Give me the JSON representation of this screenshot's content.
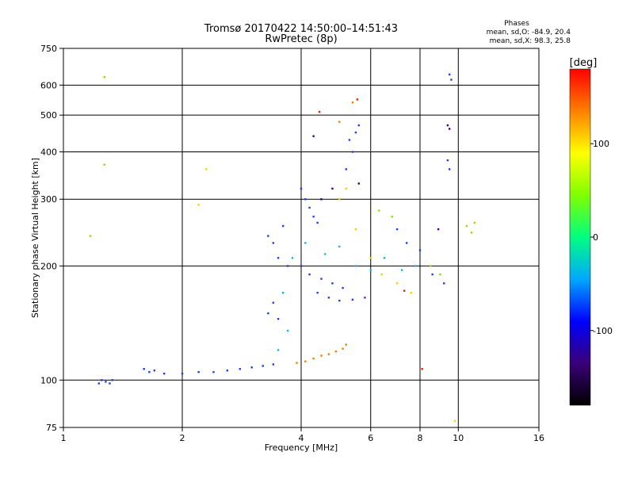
{
  "title": {
    "line1": "Tromsø 20170422 14:50:00–14:51:43",
    "line2": "RwPretec (8p)"
  },
  "stats": {
    "heading": "Phases",
    "line_o": "mean, sd,O: -84.9, 20.4",
    "line_x": "mean, sd,X:  98.3, 25.8"
  },
  "colorbar": {
    "unit": "[deg]",
    "ticks": [
      {
        "value": 100,
        "label": "100"
      },
      {
        "value": 0,
        "label": "0"
      },
      {
        "value": -100,
        "label": "-100"
      }
    ],
    "range": [
      -180,
      180
    ],
    "stops": [
      "#000000",
      "#3a0078",
      "#0000ff",
      "#00a8ff",
      "#00ff80",
      "#80ff00",
      "#ffff00",
      "#ff8000",
      "#ff0000"
    ]
  },
  "chart_data": {
    "type": "scatter",
    "xlabel": "Frequency [MHz]",
    "ylabel": "Stationary phase Virtual Height [km]",
    "xscale": "log",
    "yscale": "log",
    "xlim": [
      1,
      16
    ],
    "ylim": [
      75,
      750
    ],
    "xticks": [
      1,
      2,
      4,
      6,
      8,
      10,
      16
    ],
    "yticks": [
      75,
      100,
      200,
      300,
      400,
      500,
      600,
      750
    ],
    "grid": true,
    "color_variable": "phase [deg]",
    "series": [
      {
        "color": "#1f3fe0",
        "points": [
          [
            1.23,
            98
          ],
          [
            1.25,
            100
          ],
          [
            1.28,
            99
          ],
          [
            1.31,
            98
          ],
          [
            1.33,
            100
          ],
          [
            1.6,
            107
          ],
          [
            1.65,
            105
          ],
          [
            1.7,
            106
          ],
          [
            1.8,
            104
          ],
          [
            2.0,
            104
          ],
          [
            2.2,
            105
          ],
          [
            2.4,
            105
          ],
          [
            2.6,
            106
          ],
          [
            2.8,
            107
          ],
          [
            3.0,
            108
          ],
          [
            3.2,
            109
          ],
          [
            3.4,
            110
          ],
          [
            3.3,
            150
          ],
          [
            3.4,
            160
          ],
          [
            3.5,
            145
          ],
          [
            3.3,
            240
          ],
          [
            3.4,
            230
          ],
          [
            3.5,
            210
          ],
          [
            3.6,
            255
          ],
          [
            3.7,
            200
          ],
          [
            4.0,
            320
          ],
          [
            4.1,
            300
          ],
          [
            4.2,
            285
          ],
          [
            4.3,
            270
          ],
          [
            4.4,
            260
          ],
          [
            4.0,
            200
          ],
          [
            4.2,
            190
          ],
          [
            4.5,
            185
          ],
          [
            4.8,
            180
          ],
          [
            5.1,
            175
          ],
          [
            4.4,
            170
          ],
          [
            4.7,
            165
          ],
          [
            5.0,
            162
          ],
          [
            5.4,
            163
          ],
          [
            5.8,
            165
          ],
          [
            5.3,
            430
          ],
          [
            5.5,
            450
          ],
          [
            5.4,
            400
          ],
          [
            5.6,
            470
          ],
          [
            5.2,
            360
          ],
          [
            7.0,
            250
          ],
          [
            7.4,
            230
          ],
          [
            8.0,
            220
          ],
          [
            8.6,
            190
          ],
          [
            9.2,
            180
          ],
          [
            9.5,
            640
          ],
          [
            9.6,
            620
          ],
          [
            9.4,
            380
          ],
          [
            9.5,
            360
          ]
        ]
      },
      {
        "color": "#1fb0e8",
        "points": [
          [
            3.5,
            120
          ],
          [
            3.7,
            135
          ],
          [
            3.6,
            170
          ],
          [
            3.8,
            210
          ],
          [
            4.1,
            230
          ],
          [
            4.6,
            215
          ],
          [
            5.0,
            225
          ],
          [
            5.5,
            200
          ],
          [
            6.0,
            195
          ],
          [
            6.5,
            210
          ],
          [
            7.2,
            195
          ],
          [
            7.8,
            200
          ]
        ]
      },
      {
        "color": "#8ce000",
        "points": [
          [
            1.17,
            240
          ],
          [
            1.27,
            630
          ],
          [
            1.27,
            370
          ],
          [
            6.3,
            280
          ],
          [
            6.8,
            270
          ],
          [
            8.5,
            200
          ],
          [
            9.0,
            190
          ],
          [
            10.5,
            255
          ],
          [
            10.8,
            245
          ],
          [
            11.0,
            260
          ]
        ]
      },
      {
        "color": "#f0d000",
        "points": [
          [
            2.2,
            290
          ],
          [
            2.3,
            360
          ],
          [
            5.0,
            300
          ],
          [
            5.2,
            320
          ],
          [
            5.5,
            250
          ],
          [
            6.0,
            210
          ],
          [
            6.4,
            190
          ],
          [
            7.0,
            180
          ],
          [
            7.6,
            170
          ],
          [
            9.8,
            78
          ]
        ]
      },
      {
        "color": "#f08000",
        "points": [
          [
            3.9,
            111
          ],
          [
            4.1,
            112
          ],
          [
            4.3,
            114
          ],
          [
            4.5,
            116
          ],
          [
            4.7,
            117
          ],
          [
            4.9,
            119
          ],
          [
            5.1,
            121
          ],
          [
            5.2,
            124
          ],
          [
            5.0,
            480
          ],
          [
            5.4,
            540
          ]
        ]
      },
      {
        "color": "#e02000",
        "points": [
          [
            4.45,
            510
          ],
          [
            5.55,
            550
          ],
          [
            8.1,
            107
          ],
          [
            7.3,
            172
          ]
        ]
      },
      {
        "color": "#3a0078",
        "points": [
          [
            4.5,
            300
          ],
          [
            4.8,
            320
          ],
          [
            5.6,
            330
          ],
          [
            8.9,
            250
          ],
          [
            9.4,
            470
          ],
          [
            9.5,
            460
          ],
          [
            4.3,
            440
          ]
        ]
      }
    ]
  }
}
